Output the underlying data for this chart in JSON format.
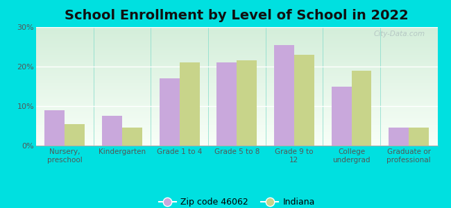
{
  "title": "School Enrollment by Level of School in 2022",
  "categories": [
    "Nursery,\npreschool",
    "Kindergarten",
    "Grade 1 to 4",
    "Grade 5 to 8",
    "Grade 9 to\n12",
    "College\nundergrad",
    "Graduate or\nprofessional"
  ],
  "zip_values": [
    9.0,
    7.5,
    17.0,
    21.0,
    25.5,
    15.0,
    4.5
  ],
  "indiana_values": [
    5.5,
    4.5,
    21.0,
    21.5,
    23.0,
    19.0,
    4.5
  ],
  "zip_color": "#c9a8dc",
  "indiana_color": "#c8d48a",
  "background_outer": "#00e0e0",
  "background_inner": "#e8f5e2",
  "ylim": [
    0,
    30
  ],
  "yticks": [
    0,
    10,
    20,
    30
  ],
  "legend_zip_label": "Zip code 46062",
  "legend_indiana_label": "Indiana",
  "title_fontsize": 14,
  "bar_width": 0.35,
  "watermark": "City-Data.com"
}
